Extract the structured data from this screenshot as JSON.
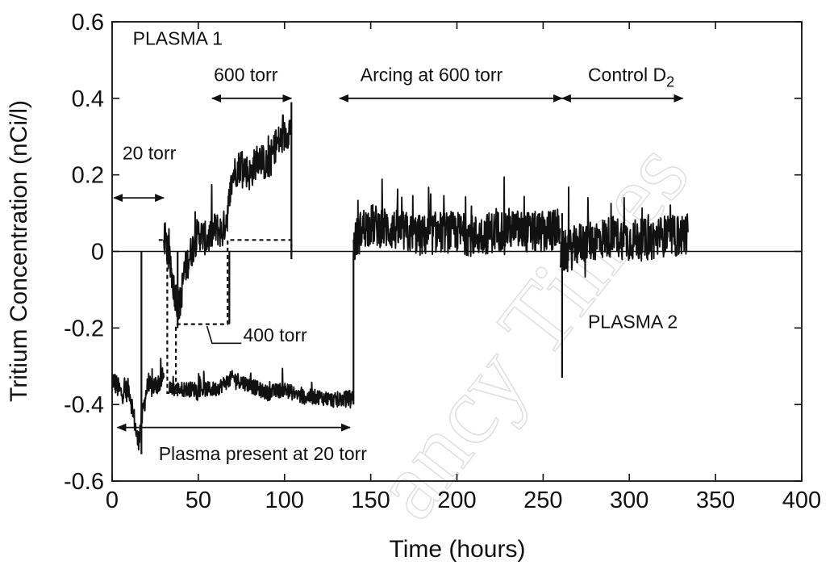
{
  "chart_data": {
    "type": "line",
    "title": "",
    "xlabel": "Time (hours)",
    "ylabel": "Tritium  Concentration (nCi/l)",
    "xlim": [
      0,
      400
    ],
    "ylim": [
      -0.6,
      0.6
    ],
    "xticks": [
      0,
      50,
      100,
      150,
      200,
      250,
      300,
      350,
      400
    ],
    "yticks": [
      -0.6,
      -0.4,
      -0.2,
      0,
      0.2,
      0.4,
      0.6
    ],
    "xtick_labels": [
      "0",
      "50",
      "100",
      "150",
      "200",
      "250",
      "300",
      "350",
      "400"
    ],
    "ytick_labels": [
      "-0.6",
      "-0.4",
      "-0.2",
      "0",
      "0.2",
      "0.4",
      "0.6"
    ],
    "grid": false,
    "series": [
      {
        "style": "solid",
        "x": [
          0,
          5,
          10,
          15,
          20,
          25,
          30
        ],
        "y": [
          -0.33,
          -0.37,
          -0.36,
          -0.5,
          -0.36,
          -0.35,
          -0.33
        ],
        "noise": 0.03
      },
      {
        "style": "solid",
        "x": [
          30,
          33,
          36,
          39,
          42,
          46,
          50,
          55,
          60,
          64,
          67,
          70,
          75,
          80,
          85,
          90,
          95,
          100,
          104
        ],
        "y": [
          0.05,
          -0.02,
          -0.1,
          -0.15,
          -0.05,
          0.0,
          0.05,
          0.03,
          0.06,
          0.05,
          0.1,
          0.2,
          0.23,
          0.2,
          0.25,
          0.22,
          0.28,
          0.3,
          0.33
        ],
        "noise": 0.045
      },
      {
        "style": "solid",
        "x": [
          33,
          45,
          60,
          70,
          80,
          90,
          100,
          110,
          120,
          130,
          140
        ],
        "y": [
          -0.36,
          -0.36,
          -0.36,
          -0.33,
          -0.35,
          -0.37,
          -0.36,
          -0.38,
          -0.38,
          -0.39,
          -0.38
        ],
        "noise": 0.02
      },
      {
        "style": "solid",
        "x": [
          140,
          145,
          150,
          160,
          170,
          180,
          190,
          200,
          210,
          220,
          230,
          240,
          250,
          260
        ],
        "y": [
          0.02,
          0.06,
          0.07,
          0.06,
          0.05,
          0.04,
          0.05,
          0.05,
          0.04,
          0.05,
          0.06,
          0.05,
          0.05,
          0.06
        ],
        "noise": 0.055
      },
      {
        "style": "solid",
        "x": [
          260,
          265,
          270,
          280,
          290,
          300,
          310,
          320,
          330,
          334
        ],
        "y": [
          0.0,
          0.0,
          0.02,
          0.03,
          0.04,
          0.03,
          0.03,
          0.04,
          0.04,
          0.05
        ],
        "noise": 0.055
      },
      {
        "style": "dashed",
        "x": [
          27,
          32,
          32,
          37,
          37,
          67,
          67,
          104,
          104
        ],
        "y": [
          0.03,
          0.03,
          -0.37,
          -0.37,
          -0.19,
          -0.19,
          0.03,
          0.03,
          -0.02
        ]
      }
    ],
    "spikes": [
      {
        "x": 17,
        "y": -0.53
      },
      {
        "x": 38,
        "y": -0.2
      },
      {
        "x": 68,
        "y": -0.19
      },
      {
        "x": 104,
        "y": 0.39
      },
      {
        "x": 104,
        "y": -0.02
      },
      {
        "x": 140,
        "y": -0.4
      },
      {
        "x": 261,
        "y": -0.33
      },
      {
        "x": 261,
        "y": 0.1
      }
    ],
    "zero_line": true,
    "annotations": [
      {
        "text": "PLASMA 1",
        "x": 12,
        "y": 0.54
      },
      {
        "text": "600 torr",
        "x": 59,
        "y": 0.445
      },
      {
        "text": "Arcing  at 600 torr",
        "x": 144,
        "y": 0.445
      },
      {
        "text": "Control D",
        "sub": "2",
        "x": 276,
        "y": 0.445
      },
      {
        "text": "20 torr",
        "x": 6,
        "y": 0.24
      },
      {
        "text": "400 torr",
        "x": 76,
        "y": -0.235
      },
      {
        "text": "PLASMA 2",
        "x": 276,
        "y": -0.2
      },
      {
        "text": "Plasma present at 20 torr",
        "x": 27,
        "y": -0.545
      }
    ],
    "arrows": [
      {
        "x1": 58,
        "x2": 104,
        "y": 0.4
      },
      {
        "x1": 132,
        "x2": 261,
        "y": 0.4
      },
      {
        "x1": 261,
        "x2": 331,
        "y": 0.4
      },
      {
        "x1": 1,
        "x2": 30,
        "y": 0.14
      },
      {
        "x1": 3,
        "x2": 138,
        "y": -0.46
      }
    ],
    "callout": {
      "from_x": 55,
      "from_y": -0.195,
      "to_x": 75,
      "to_y": -0.24
    }
  },
  "watermark": "ancy Times"
}
